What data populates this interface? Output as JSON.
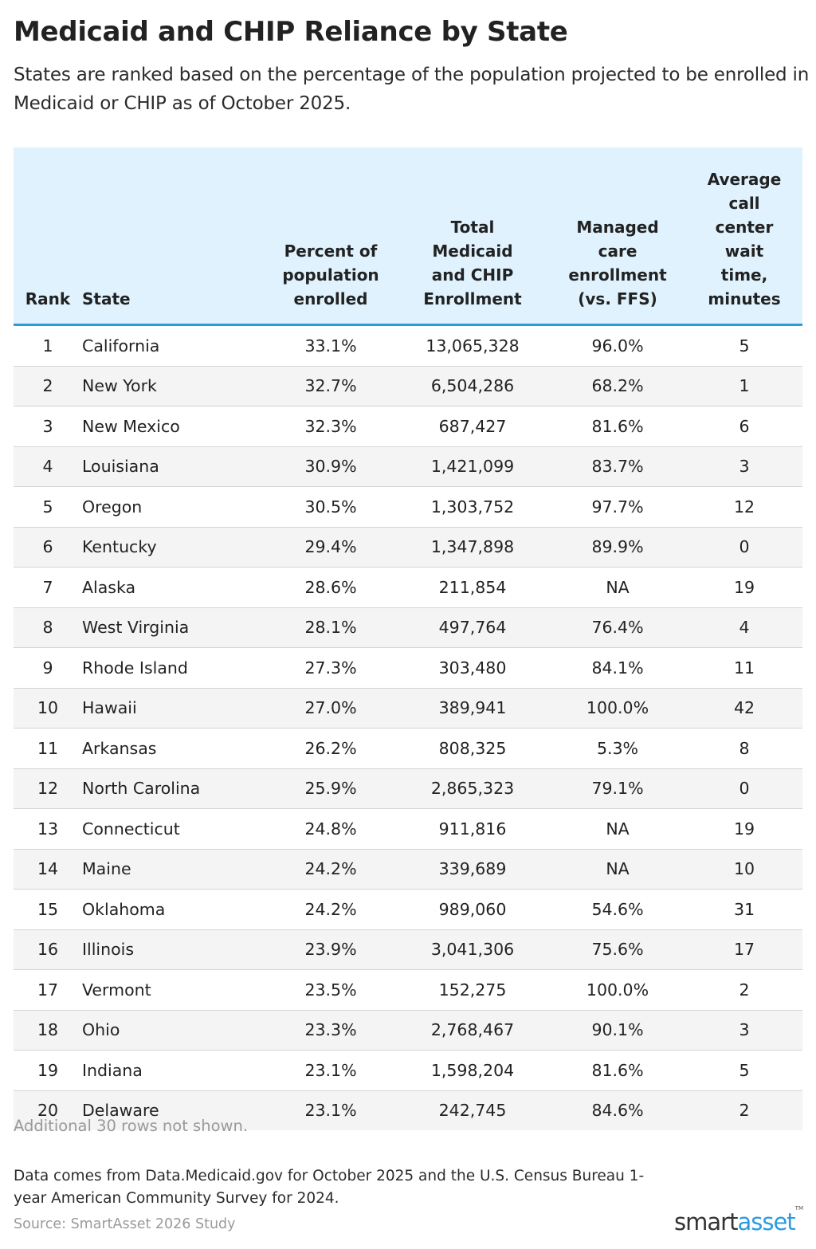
{
  "title": "Medicaid and CHIP Reliance by State",
  "subtitle": "States are ranked based on the percentage of the population projected to be enrolled in Medicaid or CHIP as of October 2025.",
  "table": {
    "headers": [
      "Rank",
      "State",
      "Percent of population enrolled",
      "Total Medicaid and CHIP Enrollment",
      "Managed care enrollment (vs. FFS)",
      "Average call center wait time, minutes"
    ],
    "header_color": "#dff2fd",
    "accent_color": "#2b9be0",
    "rows": [
      [
        "1",
        "California",
        "33.1%",
        "13,065,328",
        "96.0%",
        "5"
      ],
      [
        "2",
        "New York",
        "32.7%",
        "6,504,286",
        "68.2%",
        "1"
      ],
      [
        "3",
        "New Mexico",
        "32.3%",
        "687,427",
        "81.6%",
        "6"
      ],
      [
        "4",
        "Louisiana",
        "30.9%",
        "1,421,099",
        "83.7%",
        "3"
      ],
      [
        "5",
        "Oregon",
        "30.5%",
        "1,303,752",
        "97.7%",
        "12"
      ],
      [
        "6",
        "Kentucky",
        "29.4%",
        "1,347,898",
        "89.9%",
        "0"
      ],
      [
        "7",
        "Alaska",
        "28.6%",
        "211,854",
        "NA",
        "19"
      ],
      [
        "8",
        "West Virginia",
        "28.1%",
        "497,764",
        "76.4%",
        "4"
      ],
      [
        "9",
        "Rhode Island",
        "27.3%",
        "303,480",
        "84.1%",
        "11"
      ],
      [
        "10",
        "Hawaii",
        "27.0%",
        "389,941",
        "100.0%",
        "42"
      ],
      [
        "11",
        "Arkansas",
        "26.2%",
        "808,325",
        "5.3%",
        "8"
      ],
      [
        "12",
        "North Carolina",
        "25.9%",
        "2,865,323",
        "79.1%",
        "0"
      ],
      [
        "13",
        "Connecticut",
        "24.8%",
        "911,816",
        "NA",
        "19"
      ],
      [
        "14",
        "Maine",
        "24.2%",
        "339,689",
        "NA",
        "10"
      ],
      [
        "15",
        "Oklahoma",
        "24.2%",
        "989,060",
        "54.6%",
        "31"
      ],
      [
        "16",
        "Illinois",
        "23.9%",
        "3,041,306",
        "75.6%",
        "17"
      ],
      [
        "17",
        "Vermont",
        "23.5%",
        "152,275",
        "100.0%",
        "2"
      ],
      [
        "18",
        "Ohio",
        "23.3%",
        "2,768,467",
        "90.1%",
        "3"
      ],
      [
        "19",
        "Indiana",
        "23.1%",
        "1,598,204",
        "81.6%",
        "5"
      ],
      [
        "20",
        "Delaware",
        "23.1%",
        "242,745",
        "84.6%",
        "2"
      ]
    ]
  },
  "chart_data": {
    "type": "table",
    "title": "Medicaid and CHIP Reliance by State",
    "columns": [
      "Rank",
      "State",
      "Percent of population enrolled",
      "Total Medicaid and CHIP Enrollment",
      "Managed care enrollment (vs. FFS)",
      "Average call center wait time, minutes"
    ],
    "rows": [
      [
        1,
        "California",
        33.1,
        13065328,
        96.0,
        5
      ],
      [
        2,
        "New York",
        32.7,
        6504286,
        68.2,
        1
      ],
      [
        3,
        "New Mexico",
        32.3,
        687427,
        81.6,
        6
      ],
      [
        4,
        "Louisiana",
        30.9,
        1421099,
        83.7,
        3
      ],
      [
        5,
        "Oregon",
        30.5,
        1303752,
        97.7,
        12
      ],
      [
        6,
        "Kentucky",
        29.4,
        1347898,
        89.9,
        0
      ],
      [
        7,
        "Alaska",
        28.6,
        211854,
        null,
        19
      ],
      [
        8,
        "West Virginia",
        28.1,
        497764,
        76.4,
        4
      ],
      [
        9,
        "Rhode Island",
        27.3,
        303480,
        84.1,
        11
      ],
      [
        10,
        "Hawaii",
        27.0,
        389941,
        100.0,
        42
      ],
      [
        11,
        "Arkansas",
        26.2,
        808325,
        5.3,
        8
      ],
      [
        12,
        "North Carolina",
        25.9,
        2865323,
        79.1,
        0
      ],
      [
        13,
        "Connecticut",
        24.8,
        911816,
        null,
        19
      ],
      [
        14,
        "Maine",
        24.2,
        339689,
        null,
        10
      ],
      [
        15,
        "Oklahoma",
        24.2,
        989060,
        54.6,
        31
      ],
      [
        16,
        "Illinois",
        23.9,
        3041306,
        75.6,
        17
      ],
      [
        17,
        "Vermont",
        23.5,
        152275,
        100.0,
        2
      ],
      [
        18,
        "Ohio",
        23.3,
        2768467,
        90.1,
        3
      ],
      [
        19,
        "Indiana",
        23.1,
        1598204,
        81.6,
        5
      ],
      [
        20,
        "Delaware",
        23.1,
        242745,
        84.6,
        2
      ]
    ]
  },
  "notes": {
    "additional_rows": "Additional 30 rows not shown.",
    "data_source": "Data comes from Data.Medicaid.gov for October 2025 and the U.S. Census Bureau 1-year American Community Survey for 2024.",
    "source": "Source: SmartAsset 2026 Study"
  },
  "logo": {
    "part1": "smart",
    "part2": "asset",
    "mark": "TM"
  }
}
